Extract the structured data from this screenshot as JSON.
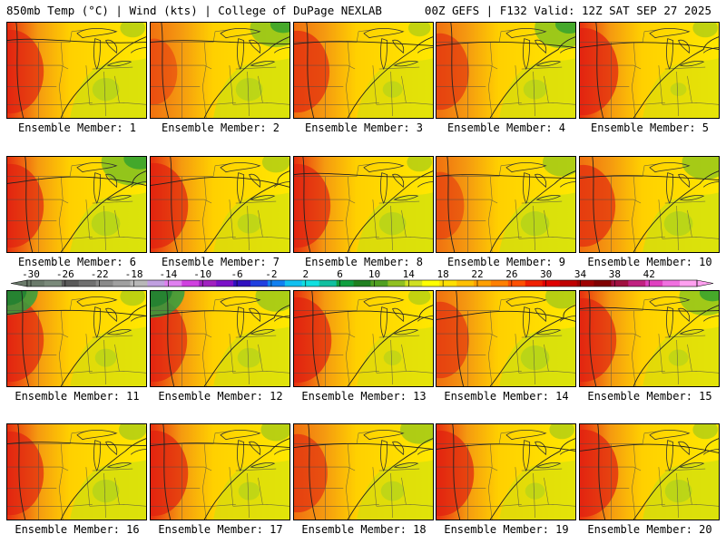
{
  "header": {
    "left_title": "850mb Temp (°C) | Wind (kts) | College of DuPage NEXLAB",
    "right_title": "00Z GEFS | F132 Valid: 12Z SAT SEP 27 2025"
  },
  "members": [
    {
      "label": "Ensemble Member: 1",
      "warm_west": 0.85,
      "cool_east": 0.55,
      "cool_ne": 0.3
    },
    {
      "label": "Ensemble Member: 2",
      "warm_west": 0.35,
      "cool_east": 0.55,
      "cool_ne": 0.8
    },
    {
      "label": "Ensemble Member: 3",
      "warm_west": 0.8,
      "cool_east": 0.35,
      "cool_ne": 0.25
    },
    {
      "label": "Ensemble Member: 4",
      "warm_west": 0.65,
      "cool_east": 0.45,
      "cool_ne": 0.85
    },
    {
      "label": "Ensemble Member: 5",
      "warm_west": 0.95,
      "cool_east": 0.25,
      "cool_ne": 0.3
    },
    {
      "label": "Ensemble Member: 6",
      "warm_west": 0.85,
      "cool_east": 0.6,
      "cool_ne": 1.0
    },
    {
      "label": "Ensemble Member: 7",
      "warm_west": 0.9,
      "cool_east": 0.45,
      "cool_ne": 0.35
    },
    {
      "label": "Ensemble Member: 8",
      "warm_west": 0.85,
      "cool_east": 0.55,
      "cool_ne": 0.3
    },
    {
      "label": "Ensemble Member: 9",
      "warm_west": 0.4,
      "cool_east": 0.6,
      "cool_ne": 0.55
    },
    {
      "label": "Ensemble Member: 10",
      "warm_west": 0.8,
      "cool_east": 0.6,
      "cool_ne": 0.7
    },
    {
      "label": "Ensemble Member: 11",
      "warm_west": 0.85,
      "cool_east": 0.4,
      "cool_ne": 0.3,
      "cool_nw": 0.9
    },
    {
      "label": "Ensemble Member: 12",
      "warm_west": 0.85,
      "cool_east": 0.45,
      "cool_ne": 0.6,
      "cool_nw": 1.0
    },
    {
      "label": "Ensemble Member: 13",
      "warm_west": 0.9,
      "cool_east": 0.3,
      "cool_ne": 0.25
    },
    {
      "label": "Ensemble Member: 14",
      "warm_west": 0.65,
      "cool_east": 0.6,
      "cool_ne": 0.45
    },
    {
      "label": "Ensemble Member: 15",
      "warm_west": 0.85,
      "cool_east": 0.35,
      "cool_ne": 0.8
    },
    {
      "label": "Ensemble Member: 16",
      "warm_west": 0.85,
      "cool_east": 0.55,
      "cool_ne": 0.35
    },
    {
      "label": "Ensemble Member: 17",
      "warm_west": 0.9,
      "cool_east": 0.4,
      "cool_ne": 0.4
    },
    {
      "label": "Ensemble Member: 18",
      "warm_west": 0.7,
      "cool_east": 0.45,
      "cool_ne": 0.55
    },
    {
      "label": "Ensemble Member: 19",
      "warm_west": 0.9,
      "cool_east": 0.35,
      "cool_ne": 0.3
    },
    {
      "label": "Ensemble Member: 20",
      "warm_west": 0.95,
      "cool_east": 0.55,
      "cool_ne": 0.3
    }
  ],
  "colorbar": {
    "ticks": [
      "-30",
      "-26",
      "-22",
      "-18",
      "-14",
      "-10",
      "-6",
      "-2",
      "2",
      "6",
      "10",
      "14",
      "18",
      "22",
      "26",
      "30",
      "34",
      "38",
      "42"
    ],
    "colors": [
      "#6a7a6a",
      "#7a8a7a",
      "#5a5a5a",
      "#707070",
      "#8a8a8a",
      "#a0a0a0",
      "#b8b8b8",
      "#c0a0e0",
      "#e080f0",
      "#d040e0",
      "#a020c0",
      "#7a10c8",
      "#3010c0",
      "#2040e0",
      "#1080f0",
      "#10c0f0",
      "#10e0e0",
      "#10c0a0",
      "#10a040",
      "#208020",
      "#50a020",
      "#90c020",
      "#d0e020",
      "#ffff00",
      "#ffe000",
      "#ffc000",
      "#ffa000",
      "#ff8000",
      "#ff5000",
      "#f02000",
      "#e00000",
      "#c00000",
      "#a00000",
      "#800000",
      "#a01040",
      "#c02080",
      "#e040c0",
      "#f070e0",
      "#ffa0f0"
    ]
  }
}
